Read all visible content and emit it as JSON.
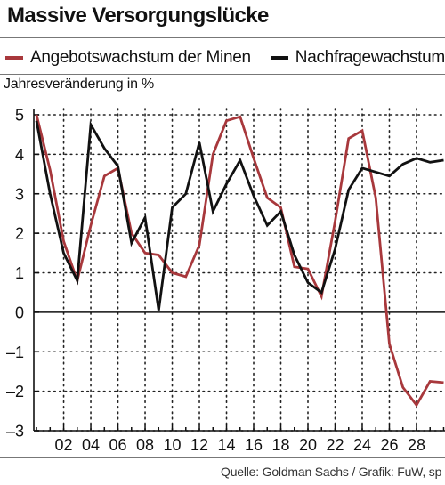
{
  "chart_data": {
    "type": "line",
    "title": "Massive Versorgungslücke",
    "ylabel": "Jahresveränderung in %",
    "x": [
      2000,
      2001,
      2002,
      2003,
      2004,
      2005,
      2006,
      2007,
      2008,
      2009,
      2010,
      2011,
      2012,
      2013,
      2014,
      2015,
      2016,
      2017,
      2018,
      2019,
      2020,
      2021,
      2022,
      2023,
      2024,
      2025,
      2026,
      2027,
      2028,
      2029,
      2030
    ],
    "xticks": [
      2002,
      2004,
      2006,
      2008,
      2010,
      2012,
      2014,
      2016,
      2018,
      2020,
      2022,
      2024,
      2026,
      2028
    ],
    "xtick_labels": [
      "02",
      "04",
      "06",
      "08",
      "10",
      "12",
      "14",
      "16",
      "18",
      "20",
      "22",
      "24",
      "26",
      "28"
    ],
    "yticks": [
      5,
      4,
      3,
      2,
      1,
      0,
      -1,
      -2,
      -3
    ],
    "ytick_labels": [
      "5",
      "4",
      "3",
      "2",
      "1",
      "0",
      "–1",
      "–2",
      "–3"
    ],
    "ylim": [
      -3,
      5.3
    ],
    "xlim": [
      1999.8,
      2030.1
    ],
    "grid": "dotted",
    "legend_position": "top",
    "series": [
      {
        "name": "Angebotswachstum der Minen",
        "color": "#a8383c",
        "values": [
          5.0,
          3.6,
          1.8,
          0.8,
          2.2,
          3.45,
          3.65,
          2.0,
          1.5,
          1.45,
          1.0,
          0.9,
          1.7,
          4.0,
          4.85,
          4.95,
          3.9,
          2.9,
          2.65,
          1.15,
          1.1,
          0.4,
          2.3,
          4.4,
          4.6,
          2.9,
          -0.8,
          -1.9,
          -2.35,
          -1.75,
          -1.78
        ]
      },
      {
        "name": "Nachfragewachstum",
        "color": "#111111",
        "values": [
          4.85,
          3.0,
          1.5,
          0.8,
          4.75,
          4.15,
          3.7,
          1.75,
          2.4,
          0.05,
          2.65,
          3.0,
          4.3,
          2.55,
          3.25,
          3.85,
          2.95,
          2.2,
          2.55,
          1.45,
          0.75,
          0.5,
          1.6,
          3.1,
          3.65,
          3.55,
          3.45,
          3.75,
          3.9,
          3.8,
          3.85
        ]
      }
    ]
  },
  "source": "Quelle: Goldman Sachs / Grafik: FuW, sp"
}
